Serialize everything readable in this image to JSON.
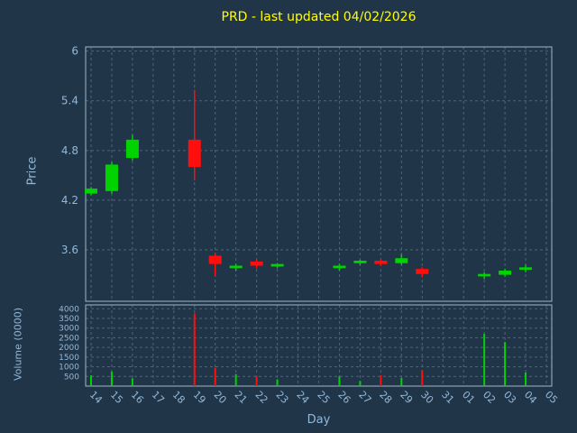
{
  "chart_data": {
    "type": "candlestick",
    "title": "PRD - last updated 04/02/2026",
    "xlabel": "Day",
    "ylabel": "Price",
    "y2label": "Volume (0000)",
    "legend": "none",
    "grid": "dashed",
    "price_axis": {
      "min": 2.98,
      "max": 6.05,
      "ticks": [
        3.6,
        4.2,
        4.8,
        5.4,
        6
      ]
    },
    "volume_axis": {
      "min": 0,
      "max": 4200,
      "ticks": [
        500,
        1000,
        1500,
        2000,
        2500,
        3000,
        3500,
        4000
      ]
    },
    "categories": [
      "14",
      "15",
      "16",
      "17",
      "18",
      "19",
      "20",
      "21",
      "22",
      "23",
      "24",
      "25",
      "26",
      "27",
      "28",
      "29",
      "30",
      "31",
      "01",
      "02",
      "03",
      "04",
      "05"
    ],
    "candles": [
      {
        "day": "14",
        "open": 4.28,
        "high": 4.36,
        "low": 4.26,
        "close": 4.34,
        "volume": 550
      },
      {
        "day": "15",
        "open": 4.31,
        "high": 4.66,
        "low": 4.28,
        "close": 4.63,
        "volume": 750
      },
      {
        "day": "16",
        "open": 4.71,
        "high": 4.99,
        "low": 4.68,
        "close": 4.93,
        "volume": 400
      },
      {
        "day": "19",
        "open": 4.93,
        "high": 5.53,
        "low": 4.44,
        "close": 4.6,
        "volume": 3750
      },
      {
        "day": "20",
        "open": 3.53,
        "high": 3.56,
        "low": 3.29,
        "close": 3.43,
        "volume": 950
      },
      {
        "day": "21",
        "open": 3.38,
        "high": 3.43,
        "low": 3.35,
        "close": 3.41,
        "volume": 620
      },
      {
        "day": "22",
        "open": 3.46,
        "high": 3.48,
        "low": 3.38,
        "close": 3.41,
        "volume": 480
      },
      {
        "day": "23",
        "open": 3.4,
        "high": 3.44,
        "low": 3.38,
        "close": 3.43,
        "volume": 350
      },
      {
        "day": "26",
        "open": 3.38,
        "high": 3.43,
        "low": 3.35,
        "close": 3.41,
        "volume": 500
      },
      {
        "day": "27",
        "open": 3.44,
        "high": 3.48,
        "low": 3.42,
        "close": 3.47,
        "volume": 260
      },
      {
        "day": "28",
        "open": 3.47,
        "high": 3.49,
        "low": 3.41,
        "close": 3.43,
        "volume": 560
      },
      {
        "day": "29",
        "open": 3.44,
        "high": 3.55,
        "low": 3.42,
        "close": 3.5,
        "volume": 420
      },
      {
        "day": "30",
        "open": 3.37,
        "high": 3.39,
        "low": 3.27,
        "close": 3.31,
        "volume": 820
      },
      {
        "day": "02",
        "open": 3.28,
        "high": 3.33,
        "low": 3.25,
        "close": 3.31,
        "volume": 2700
      },
      {
        "day": "03",
        "open": 3.3,
        "high": 3.37,
        "low": 3.28,
        "close": 3.35,
        "volume": 2280
      },
      {
        "day": "04",
        "open": 3.36,
        "high": 3.42,
        "low": 3.33,
        "close": 3.39,
        "volume": 700
      }
    ],
    "colors": {
      "up": "#00d300",
      "down": "#ff0e0e",
      "background": "#213549",
      "title": "#ffff00",
      "axis_text": "#92b8d8",
      "grid": "#4f657a",
      "border": "#9fb6c9"
    }
  }
}
